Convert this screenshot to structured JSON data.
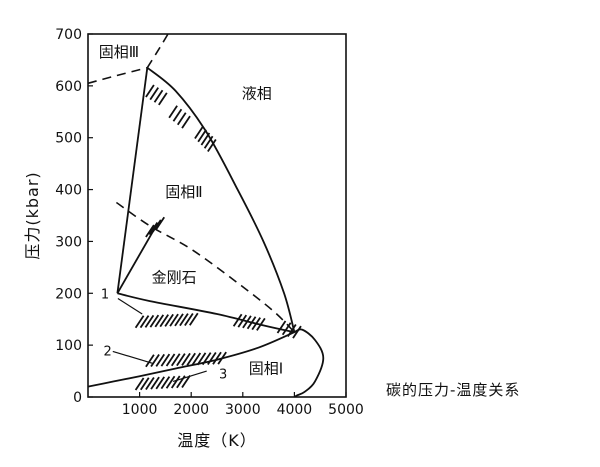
{
  "chart_data": {
    "type": "line",
    "title": "碳的压力-温度关系",
    "xlabel": "温度（K）",
    "ylabel": "压力(kbar)",
    "xlim": [
      0,
      5000
    ],
    "ylim": [
      0,
      700
    ],
    "x_ticks": [
      1000,
      2000,
      3000,
      4000,
      5000
    ],
    "y_ticks": [
      0,
      100,
      200,
      300,
      400,
      500,
      600,
      700
    ],
    "grid": false,
    "regions": [
      {
        "label": "固相Ⅲ",
        "x": 600,
        "y": 665
      },
      {
        "label": "液相",
        "x": 3270,
        "y": 585
      },
      {
        "label": "固相Ⅱ",
        "x": 1860,
        "y": 395
      },
      {
        "label": "金刚石",
        "x": 1670,
        "y": 230
      },
      {
        "label": "固相Ⅰ",
        "x": 3450,
        "y": 55
      }
    ],
    "curve_labels": [
      {
        "label": "1",
        "x": 330,
        "y": 200
      },
      {
        "label": "2",
        "x": 380,
        "y": 90
      },
      {
        "label": "3",
        "x": 2620,
        "y": 45
      }
    ],
    "series": [
      {
        "style": "solid",
        "points": [
          [
            0,
            20
          ],
          [
            500,
            30
          ],
          [
            1000,
            40
          ],
          [
            1700,
            55
          ],
          [
            2500,
            72
          ],
          [
            3300,
            95
          ],
          [
            4000,
            125
          ]
        ]
      },
      {
        "style": "solid",
        "points": [
          [
            4000,
            125
          ],
          [
            4150,
            130
          ],
          [
            4400,
            110
          ],
          [
            4560,
            75
          ],
          [
            4400,
            30
          ],
          [
            4200,
            10
          ],
          [
            4050,
            3
          ],
          [
            4000,
            0
          ]
        ]
      },
      {
        "style": "solid",
        "points": [
          [
            570,
            200
          ],
          [
            1200,
            185
          ],
          [
            2500,
            160
          ],
          [
            3400,
            138
          ],
          [
            4000,
            125
          ]
        ]
      },
      {
        "style": "solid",
        "points": [
          [
            570,
            200
          ],
          [
            1150,
            635
          ]
        ]
      },
      {
        "style": "solid",
        "points": [
          [
            570,
            200
          ],
          [
            1320,
            330
          ]
        ]
      },
      {
        "style": "solid",
        "points": [
          [
            1150,
            635
          ],
          [
            1700,
            590
          ],
          [
            2300,
            510
          ],
          [
            2900,
            400
          ],
          [
            3400,
            300
          ],
          [
            3800,
            200
          ],
          [
            4000,
            125
          ]
        ]
      },
      {
        "style": "dashed",
        "points": [
          [
            550,
            375
          ],
          [
            1200,
            330
          ],
          [
            2000,
            285
          ],
          [
            2900,
            220
          ],
          [
            3600,
            165
          ],
          [
            4000,
            125
          ]
        ]
      },
      {
        "style": "dashed",
        "points": [
          [
            0,
            605
          ],
          [
            450,
            617
          ],
          [
            1150,
            635
          ]
        ]
      },
      {
        "style": "dashed",
        "points": [
          [
            1150,
            635
          ],
          [
            1400,
            675
          ],
          [
            1550,
            700
          ]
        ]
      }
    ],
    "hatch_bands": [
      {
        "points": [
          [
            1200,
            590
          ],
          [
            1450,
            575
          ]
        ]
      },
      {
        "points": [
          [
            1650,
            550
          ],
          [
            1900,
            530
          ]
        ]
      },
      {
        "points": [
          [
            2150,
            510
          ],
          [
            2400,
            485
          ]
        ]
      },
      {
        "points": [
          [
            1200,
            320
          ],
          [
            1400,
            335
          ]
        ]
      },
      {
        "points": [
          [
            2900,
            148
          ],
          [
            3350,
            140
          ]
        ]
      },
      {
        "points": [
          [
            3750,
            135
          ],
          [
            4050,
            125
          ]
        ]
      },
      {
        "points": [
          [
            1000,
            145
          ],
          [
            2050,
            150
          ]
        ]
      },
      {
        "points": [
          [
            1200,
            70
          ],
          [
            2600,
            75
          ]
        ]
      },
      {
        "points": [
          [
            1000,
            25
          ],
          [
            1900,
            30
          ]
        ]
      }
    ],
    "leaders": [
      {
        "points": [
          [
            580,
            190
          ],
          [
            1050,
            160
          ]
        ]
      },
      {
        "points": [
          [
            480,
            88
          ],
          [
            1250,
            65
          ]
        ]
      },
      {
        "points": [
          [
            2300,
            50
          ],
          [
            1650,
            30
          ]
        ]
      }
    ]
  }
}
